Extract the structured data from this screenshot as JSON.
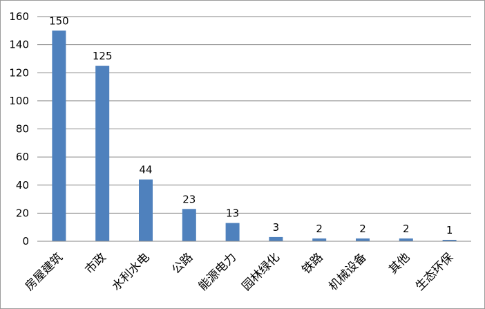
{
  "chart_data": {
    "type": "bar",
    "title": "",
    "xlabel": "",
    "ylabel": "",
    "categories": [
      "房屋建筑",
      "市政",
      "水利水电",
      "公路",
      "能源电力",
      "园林绿化",
      "铁路",
      "机械设备",
      "其他",
      "生态环保"
    ],
    "values": [
      150,
      125,
      44,
      23,
      13,
      3,
      2,
      2,
      2,
      1
    ],
    "data_labels": [
      "150",
      "125",
      "44",
      "23",
      "13",
      "3",
      "2",
      "2",
      "2",
      "1"
    ],
    "ylim": [
      0,
      160
    ],
    "y_ticks": [
      "0",
      "20",
      "40",
      "60",
      "80",
      "100",
      "120",
      "140",
      "160"
    ],
    "grid": true,
    "legend": "none",
    "bar_color": "#4f81bd",
    "grid_color": "#868686"
  }
}
